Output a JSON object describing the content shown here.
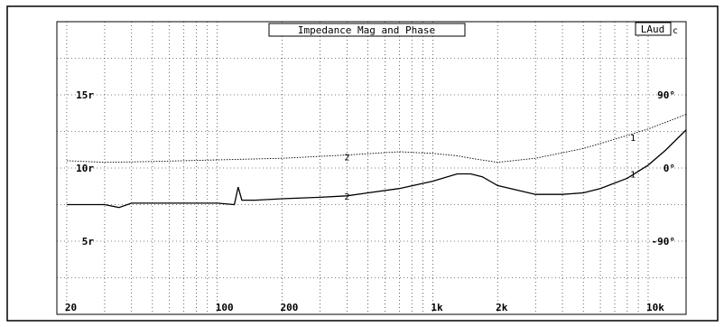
{
  "chart_data": {
    "type": "line",
    "title": "Impedance Mag and Phase",
    "logo": "LAud",
    "logo_suffix": "c",
    "x_scale": "log",
    "xlim": [
      18,
      15000
    ],
    "x_ticks": [
      {
        "value": 20,
        "label": "20"
      },
      {
        "value": 100,
        "label": "100"
      },
      {
        "value": 200,
        "label": "200"
      },
      {
        "value": 1000,
        "label": "1k"
      },
      {
        "value": 2000,
        "label": "2k"
      },
      {
        "value": 10000,
        "label": "10k"
      }
    ],
    "left_axis": {
      "ylim": [
        0,
        20
      ],
      "ticks": [
        {
          "value": 15,
          "label": "15r"
        },
        {
          "value": 10,
          "label": "10r"
        },
        {
          "value": 5,
          "label": "5r"
        }
      ]
    },
    "right_axis": {
      "ylim": [
        -180,
        180
      ],
      "ticks": [
        {
          "value": 90,
          "label": "90°"
        },
        {
          "value": 0,
          "label": "0°"
        },
        {
          "value": -90,
          "label": "-90°"
        }
      ]
    },
    "grid": true,
    "series": [
      {
        "marker": "1",
        "axis": "left",
        "style": "solid",
        "x": [
          20,
          30,
          35,
          40,
          50,
          60,
          80,
          100,
          120,
          125,
          130,
          150,
          200,
          300,
          400,
          500,
          700,
          1000,
          1300,
          1500,
          1700,
          2000,
          3000,
          4000,
          5000,
          6000,
          8000,
          10000,
          12000,
          15000
        ],
        "y": [
          7.5,
          7.5,
          7.3,
          7.6,
          7.6,
          7.6,
          7.6,
          7.6,
          7.5,
          8.7,
          7.8,
          7.8,
          7.9,
          8.0,
          8.1,
          8.3,
          8.6,
          9.1,
          9.6,
          9.6,
          9.4,
          8.8,
          8.2,
          8.2,
          8.3,
          8.6,
          9.3,
          10.2,
          11.2,
          12.6
        ]
      },
      {
        "marker": "2",
        "axis": "right",
        "style": "dotted",
        "x": [
          20,
          30,
          50,
          100,
          200,
          400,
          700,
          1000,
          1300,
          1500,
          2000,
          3000,
          5000,
          8000,
          10000,
          12000,
          15000
        ],
        "y": [
          9,
          7,
          8,
          10,
          12,
          16,
          20,
          18,
          15,
          12,
          7,
          12,
          24,
          40,
          48,
          56,
          66
        ]
      }
    ],
    "markers": [
      {
        "series": 1,
        "x": 400,
        "y": 8.1,
        "label": "2"
      },
      {
        "series": 1,
        "x": 8500,
        "y": 9.6,
        "label": "1"
      },
      {
        "series": 2,
        "x": 400,
        "y": 14,
        "label": "2"
      },
      {
        "series": 2,
        "x": 8500,
        "y": 38,
        "label": "1"
      }
    ]
  }
}
